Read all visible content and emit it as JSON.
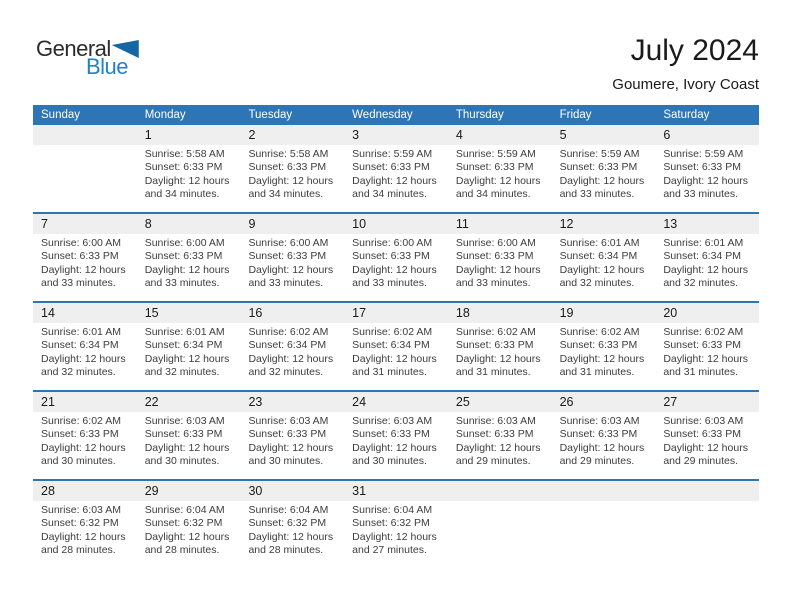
{
  "logo": {
    "general": "General",
    "blue": "Blue",
    "triangle_icon": "blue-triangle"
  },
  "header": {
    "title": "July 2024",
    "subtitle": "Goumere, Ivory Coast"
  },
  "weekdays": [
    "Sunday",
    "Monday",
    "Tuesday",
    "Wednesday",
    "Thursday",
    "Friday",
    "Saturday"
  ],
  "colors": {
    "header_band_blue": "#2E75B6",
    "week_separator_blue": "#2E75B6",
    "day_stripe_gray": "#EFEFEF",
    "logo_text_blue": "#1F83CB",
    "logo_triangle_blue": "#1566A4"
  },
  "weeks": [
    [
      {},
      {
        "day": "1",
        "sunrise": "Sunrise: 5:58 AM",
        "sunset": "Sunset: 6:33 PM",
        "daylight1": "Daylight: 12 hours",
        "daylight2": "and 34 minutes."
      },
      {
        "day": "2",
        "sunrise": "Sunrise: 5:58 AM",
        "sunset": "Sunset: 6:33 PM",
        "daylight1": "Daylight: 12 hours",
        "daylight2": "and 34 minutes."
      },
      {
        "day": "3",
        "sunrise": "Sunrise: 5:59 AM",
        "sunset": "Sunset: 6:33 PM",
        "daylight1": "Daylight: 12 hours",
        "daylight2": "and 34 minutes."
      },
      {
        "day": "4",
        "sunrise": "Sunrise: 5:59 AM",
        "sunset": "Sunset: 6:33 PM",
        "daylight1": "Daylight: 12 hours",
        "daylight2": "and 34 minutes."
      },
      {
        "day": "5",
        "sunrise": "Sunrise: 5:59 AM",
        "sunset": "Sunset: 6:33 PM",
        "daylight1": "Daylight: 12 hours",
        "daylight2": "and 33 minutes."
      },
      {
        "day": "6",
        "sunrise": "Sunrise: 5:59 AM",
        "sunset": "Sunset: 6:33 PM",
        "daylight1": "Daylight: 12 hours",
        "daylight2": "and 33 minutes."
      }
    ],
    [
      {
        "day": "7",
        "sunrise": "Sunrise: 6:00 AM",
        "sunset": "Sunset: 6:33 PM",
        "daylight1": "Daylight: 12 hours",
        "daylight2": "and 33 minutes."
      },
      {
        "day": "8",
        "sunrise": "Sunrise: 6:00 AM",
        "sunset": "Sunset: 6:33 PM",
        "daylight1": "Daylight: 12 hours",
        "daylight2": "and 33 minutes."
      },
      {
        "day": "9",
        "sunrise": "Sunrise: 6:00 AM",
        "sunset": "Sunset: 6:33 PM",
        "daylight1": "Daylight: 12 hours",
        "daylight2": "and 33 minutes."
      },
      {
        "day": "10",
        "sunrise": "Sunrise: 6:00 AM",
        "sunset": "Sunset: 6:33 PM",
        "daylight1": "Daylight: 12 hours",
        "daylight2": "and 33 minutes."
      },
      {
        "day": "11",
        "sunrise": "Sunrise: 6:00 AM",
        "sunset": "Sunset: 6:33 PM",
        "daylight1": "Daylight: 12 hours",
        "daylight2": "and 33 minutes."
      },
      {
        "day": "12",
        "sunrise": "Sunrise: 6:01 AM",
        "sunset": "Sunset: 6:34 PM",
        "daylight1": "Daylight: 12 hours",
        "daylight2": "and 32 minutes."
      },
      {
        "day": "13",
        "sunrise": "Sunrise: 6:01 AM",
        "sunset": "Sunset: 6:34 PM",
        "daylight1": "Daylight: 12 hours",
        "daylight2": "and 32 minutes."
      }
    ],
    [
      {
        "day": "14",
        "sunrise": "Sunrise: 6:01 AM",
        "sunset": "Sunset: 6:34 PM",
        "daylight1": "Daylight: 12 hours",
        "daylight2": "and 32 minutes."
      },
      {
        "day": "15",
        "sunrise": "Sunrise: 6:01 AM",
        "sunset": "Sunset: 6:34 PM",
        "daylight1": "Daylight: 12 hours",
        "daylight2": "and 32 minutes."
      },
      {
        "day": "16",
        "sunrise": "Sunrise: 6:02 AM",
        "sunset": "Sunset: 6:34 PM",
        "daylight1": "Daylight: 12 hours",
        "daylight2": "and 32 minutes."
      },
      {
        "day": "17",
        "sunrise": "Sunrise: 6:02 AM",
        "sunset": "Sunset: 6:34 PM",
        "daylight1": "Daylight: 12 hours",
        "daylight2": "and 31 minutes."
      },
      {
        "day": "18",
        "sunrise": "Sunrise: 6:02 AM",
        "sunset": "Sunset: 6:33 PM",
        "daylight1": "Daylight: 12 hours",
        "daylight2": "and 31 minutes."
      },
      {
        "day": "19",
        "sunrise": "Sunrise: 6:02 AM",
        "sunset": "Sunset: 6:33 PM",
        "daylight1": "Daylight: 12 hours",
        "daylight2": "and 31 minutes."
      },
      {
        "day": "20",
        "sunrise": "Sunrise: 6:02 AM",
        "sunset": "Sunset: 6:33 PM",
        "daylight1": "Daylight: 12 hours",
        "daylight2": "and 31 minutes."
      }
    ],
    [
      {
        "day": "21",
        "sunrise": "Sunrise: 6:02 AM",
        "sunset": "Sunset: 6:33 PM",
        "daylight1": "Daylight: 12 hours",
        "daylight2": "and 30 minutes."
      },
      {
        "day": "22",
        "sunrise": "Sunrise: 6:03 AM",
        "sunset": "Sunset: 6:33 PM",
        "daylight1": "Daylight: 12 hours",
        "daylight2": "and 30 minutes."
      },
      {
        "day": "23",
        "sunrise": "Sunrise: 6:03 AM",
        "sunset": "Sunset: 6:33 PM",
        "daylight1": "Daylight: 12 hours",
        "daylight2": "and 30 minutes."
      },
      {
        "day": "24",
        "sunrise": "Sunrise: 6:03 AM",
        "sunset": "Sunset: 6:33 PM",
        "daylight1": "Daylight: 12 hours",
        "daylight2": "and 30 minutes."
      },
      {
        "day": "25",
        "sunrise": "Sunrise: 6:03 AM",
        "sunset": "Sunset: 6:33 PM",
        "daylight1": "Daylight: 12 hours",
        "daylight2": "and 29 minutes."
      },
      {
        "day": "26",
        "sunrise": "Sunrise: 6:03 AM",
        "sunset": "Sunset: 6:33 PM",
        "daylight1": "Daylight: 12 hours",
        "daylight2": "and 29 minutes."
      },
      {
        "day": "27",
        "sunrise": "Sunrise: 6:03 AM",
        "sunset": "Sunset: 6:33 PM",
        "daylight1": "Daylight: 12 hours",
        "daylight2": "and 29 minutes."
      }
    ],
    [
      {
        "day": "28",
        "sunrise": "Sunrise: 6:03 AM",
        "sunset": "Sunset: 6:32 PM",
        "daylight1": "Daylight: 12 hours",
        "daylight2": "and 28 minutes."
      },
      {
        "day": "29",
        "sunrise": "Sunrise: 6:04 AM",
        "sunset": "Sunset: 6:32 PM",
        "daylight1": "Daylight: 12 hours",
        "daylight2": "and 28 minutes."
      },
      {
        "day": "30",
        "sunrise": "Sunrise: 6:04 AM",
        "sunset": "Sunset: 6:32 PM",
        "daylight1": "Daylight: 12 hours",
        "daylight2": "and 28 minutes."
      },
      {
        "day": "31",
        "sunrise": "Sunrise: 6:04 AM",
        "sunset": "Sunset: 6:32 PM",
        "daylight1": "Daylight: 12 hours",
        "daylight2": "and 27 minutes."
      },
      {},
      {},
      {}
    ]
  ]
}
